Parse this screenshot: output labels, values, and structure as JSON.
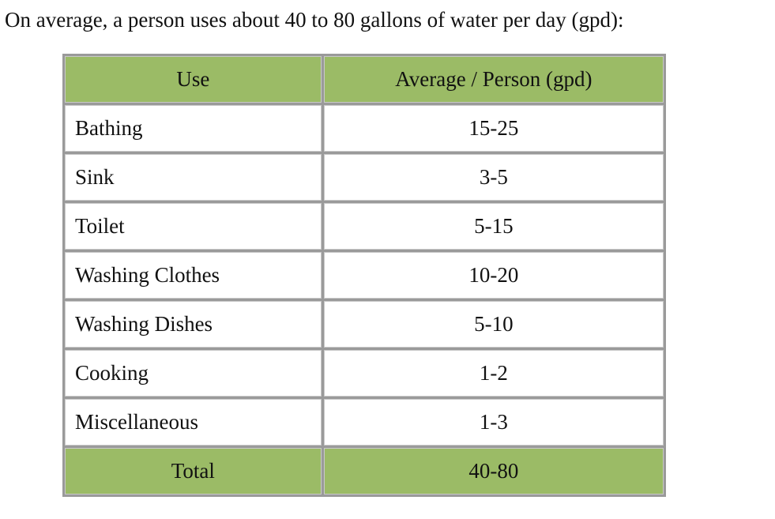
{
  "intro": "On average, a person uses about 40 to 80 gallons of water per day (gpd):",
  "table": {
    "headers": [
      "Use",
      "Average / Person (gpd)"
    ],
    "rows": [
      {
        "use": "Bathing",
        "avg": "15-25"
      },
      {
        "use": "Sink",
        "avg": "3-5"
      },
      {
        "use": "Toilet",
        "avg": "5-15"
      },
      {
        "use": "Washing Clothes",
        "avg": "10-20"
      },
      {
        "use": "Washing Dishes",
        "avg": "5-10"
      },
      {
        "use": "Cooking",
        "avg": "1-2"
      },
      {
        "use": "Miscellaneous",
        "avg": "1-3"
      }
    ],
    "total": {
      "label": "Total",
      "value": "40-80"
    }
  },
  "colors": {
    "header_fill": "#9bbb66",
    "border": "#9a9a9a"
  }
}
